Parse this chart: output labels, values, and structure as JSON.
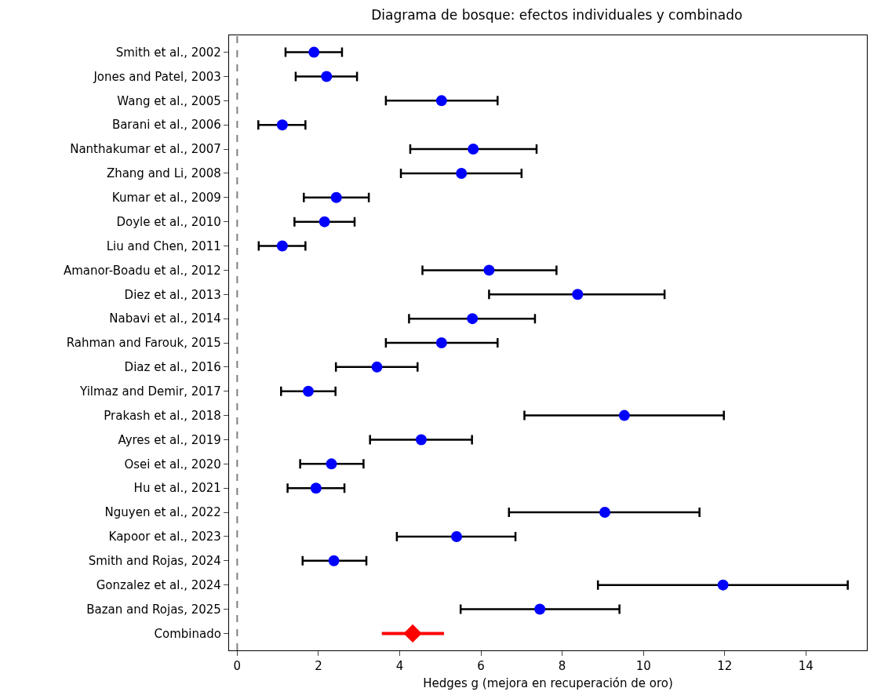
{
  "chart_data": {
    "type": "scatter",
    "orientation": "horizontal",
    "title": "Diagrama de bosque: efectos individuales y combinado",
    "xlabel": "Hedges g (mejora en recuperación de oro)",
    "categories": [
      "Smith et al., 2002",
      "Jones and Patel, 2003",
      "Wang et al., 2005",
      "Barani et al., 2006",
      "Nanthakumar et al., 2007",
      "Zhang and Li, 2008",
      "Kumar et al., 2009",
      "Doyle et al., 2010",
      "Liu and Chen, 2011",
      "Amanor-Boadu et al., 2012",
      "Diez et al., 2013",
      "Nabavi et al., 2014",
      "Rahman and Farouk, 2015",
      "Diaz et al., 2016",
      "Yilmaz and Demir, 2017",
      "Prakash et al., 2018",
      "Ayres et al., 2019",
      "Osei et al., 2020",
      "Hu et al., 2021",
      "Nguyen et al., 2022",
      "Kapoor et al., 2023",
      "Smith and Rojas, 2024",
      "Gonzalez et al., 2024",
      "Bazan and Rojas, 2025",
      "Combinado"
    ],
    "series": [
      {
        "color": "#0000ff",
        "marker": "circle",
        "values": [
          1.89,
          2.2,
          5.03,
          1.11,
          5.81,
          5.52,
          2.44,
          2.15,
          1.11,
          6.2,
          8.38,
          5.79,
          5.03,
          3.44,
          1.75,
          9.53,
          4.53,
          2.32,
          1.94,
          9.05,
          5.4,
          2.38,
          11.96,
          7.45,
          null
        ],
        "errors": [
          [
            1.19,
            2.58
          ],
          [
            1.44,
            2.95
          ],
          [
            3.66,
            6.41
          ],
          [
            0.52,
            1.68
          ],
          [
            4.26,
            7.37
          ],
          [
            4.03,
            7.0
          ],
          [
            1.64,
            3.24
          ],
          [
            1.41,
            2.89
          ],
          [
            0.53,
            1.68
          ],
          [
            4.56,
            7.86
          ],
          [
            6.2,
            10.52
          ],
          [
            4.23,
            7.33
          ],
          [
            3.66,
            6.41
          ],
          [
            2.43,
            4.44
          ],
          [
            1.08,
            2.42
          ],
          [
            7.07,
            11.98
          ],
          [
            3.27,
            5.78
          ],
          [
            1.55,
            3.11
          ],
          [
            1.24,
            2.64
          ],
          [
            6.69,
            11.38
          ],
          [
            3.93,
            6.85
          ],
          [
            1.61,
            3.18
          ],
          [
            8.88,
            15.03
          ],
          [
            5.5,
            9.41
          ],
          null
        ]
      },
      {
        "color": "#ff0000",
        "marker": "diamond",
        "values": [
          null,
          null,
          null,
          null,
          null,
          null,
          null,
          null,
          null,
          null,
          null,
          null,
          null,
          null,
          null,
          null,
          null,
          null,
          null,
          null,
          null,
          null,
          null,
          null,
          4.32
        ],
        "errors": [
          null,
          null,
          null,
          null,
          null,
          null,
          null,
          null,
          null,
          null,
          null,
          null,
          null,
          null,
          null,
          null,
          null,
          null,
          null,
          null,
          null,
          null,
          null,
          null,
          [
            3.56,
            5.09
          ]
        ]
      }
    ],
    "xlim": [
      -0.2,
      15.5
    ],
    "xticks": [
      0,
      2,
      4,
      6,
      8,
      10,
      12,
      14
    ],
    "ref_lines": [
      {
        "axis": "x",
        "value": 0,
        "color": "#808080",
        "line_style": "dashed"
      }
    ],
    "grid": false
  }
}
